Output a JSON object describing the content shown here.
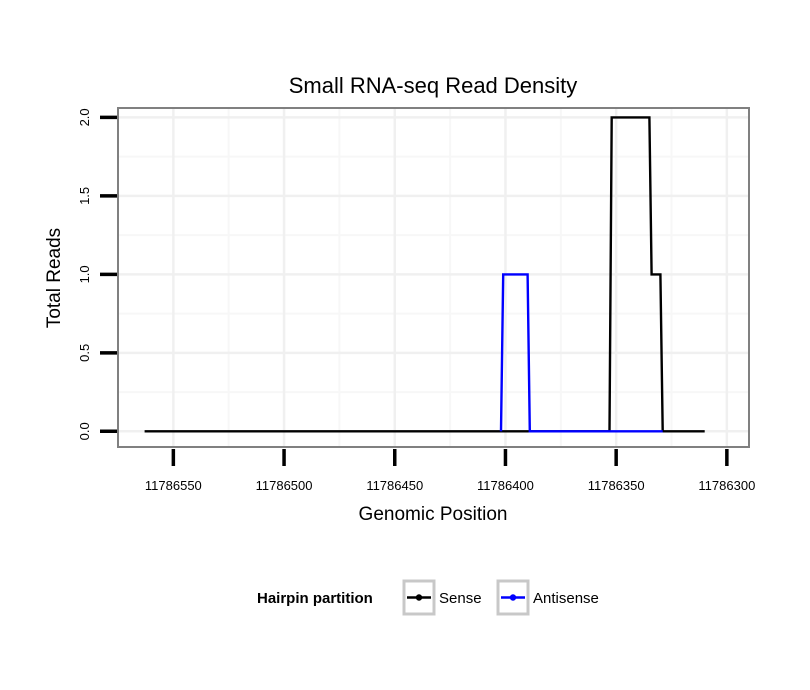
{
  "chart_data": {
    "type": "line",
    "title": "Small RNA-seq Read Density",
    "xlabel": "Genomic Position",
    "ylabel": "Total Reads",
    "x_reversed": true,
    "xlim": [
      11786575,
      11786290
    ],
    "ylim": [
      -0.1,
      2.06
    ],
    "x_ticks": [
      11786550,
      11786500,
      11786450,
      11786400,
      11786350,
      11786300
    ],
    "x_tick_labels": [
      "11786550",
      "11786500",
      "11786450",
      "11786400",
      "11786350",
      "11786300"
    ],
    "y_ticks": [
      0,
      0.5,
      1,
      1.5,
      2
    ],
    "y_tick_labels": [
      "0.0",
      "0.5",
      "1.0",
      "1.5",
      "2.0"
    ],
    "grid": true,
    "legend_title": "Hairpin partition",
    "legend_position": "bottom",
    "series": [
      {
        "name": "Sense",
        "color": "#000000",
        "x": [
          11786563,
          11786353,
          11786352,
          11786335,
          11786334,
          11786330,
          11786329,
          11786310
        ],
        "y": [
          0,
          0,
          2,
          2,
          1,
          1,
          0,
          0
        ]
      },
      {
        "name": "Antisense",
        "color": "#0000ff",
        "x": [
          11786402,
          11786401,
          11786390,
          11786389,
          11786353,
          11786352,
          11786329
        ],
        "y": [
          0,
          1,
          1,
          0,
          0,
          0,
          0
        ]
      }
    ]
  }
}
